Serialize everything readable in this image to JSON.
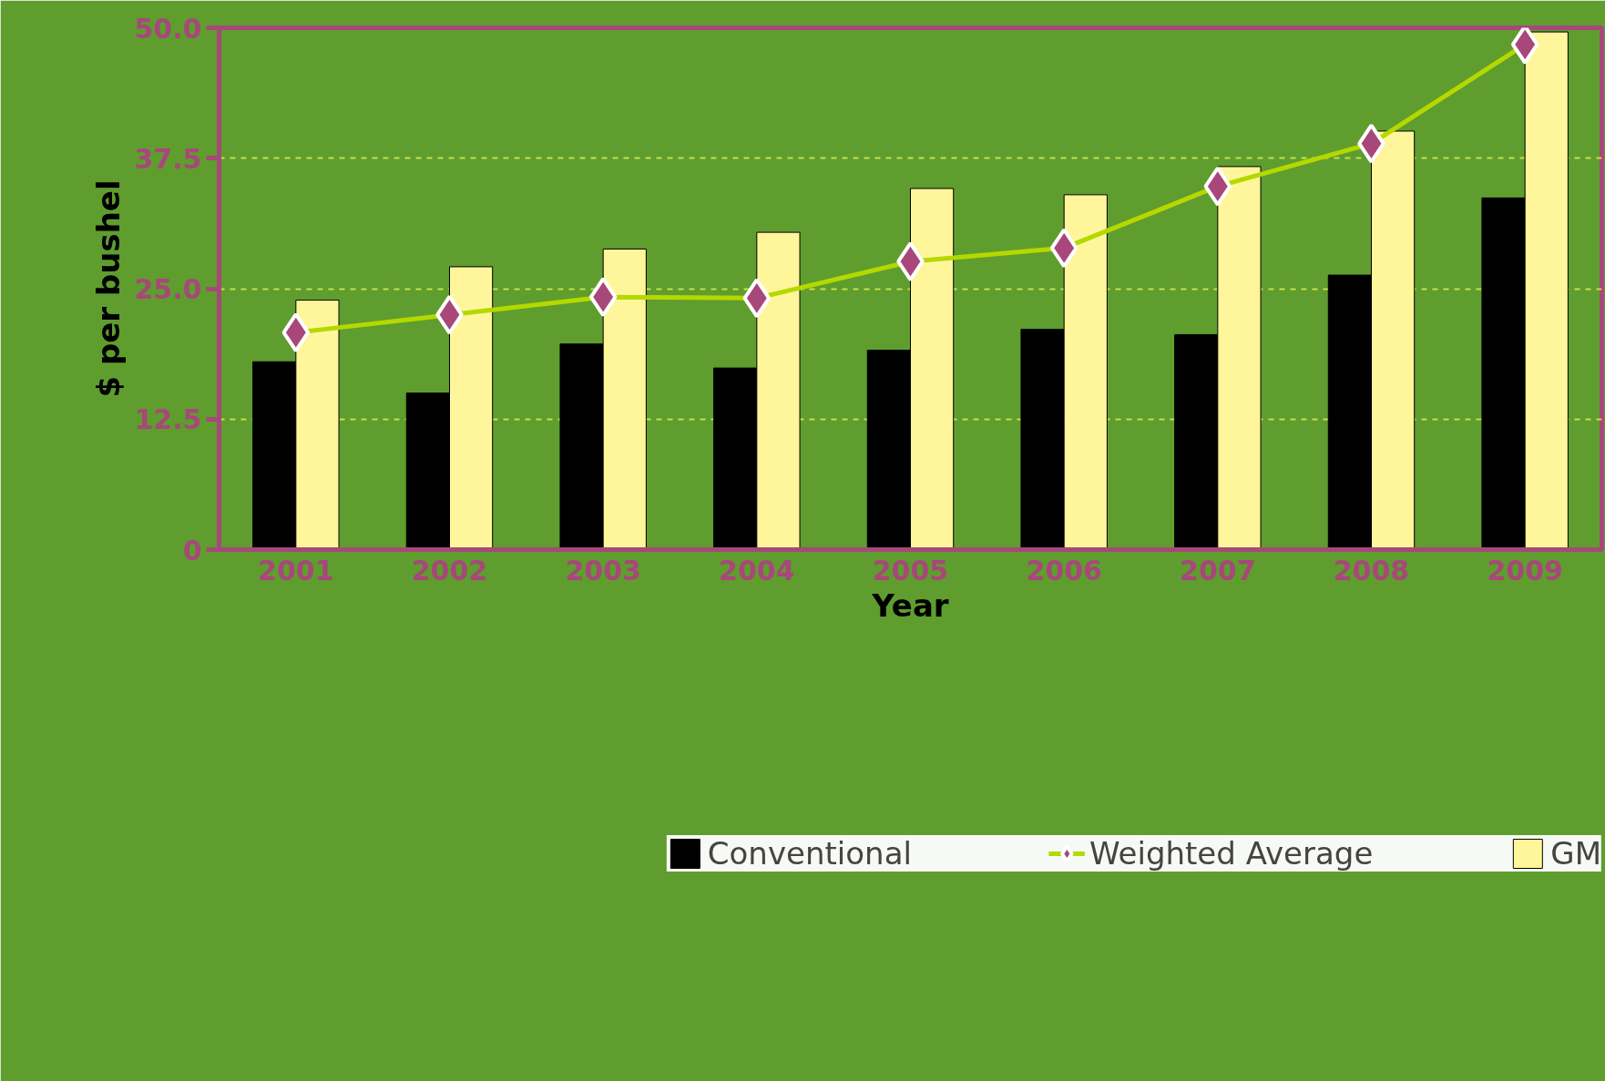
{
  "chart_data": {
    "type": "bar",
    "xlabel": "Year",
    "ylabel": "$ per bushel",
    "categories": [
      "2001",
      "2002",
      "2003",
      "2004",
      "2005",
      "2006",
      "2007",
      "2008",
      "2009"
    ],
    "series": [
      {
        "name": "Conventional",
        "color": "#000000",
        "values": [
          18.0,
          15.0,
          19.7,
          17.4,
          19.1,
          21.1,
          20.6,
          26.3,
          33.7
        ]
      },
      {
        "name": "Weighted Average",
        "type": "line",
        "color": "#b5d800",
        "marker": "diamond",
        "line_style": "solid",
        "values": [
          20.8,
          22.5,
          24.2,
          24.1,
          27.6,
          28.9,
          34.8,
          38.9,
          48.4
        ]
      },
      {
        "name": "GM",
        "color": "#fff59a",
        "values": [
          23.9,
          27.1,
          28.8,
          30.4,
          34.6,
          34.0,
          36.7,
          40.1,
          49.6
        ]
      }
    ],
    "ylim": [
      0,
      50
    ],
    "yticks": [
      0,
      12.5,
      {
        "value": 25,
        "label": "25.0"
      },
      37.5,
      {
        "value": 50,
        "label": "50.0"
      }
    ],
    "grid": "y",
    "legend": "bottom"
  }
}
